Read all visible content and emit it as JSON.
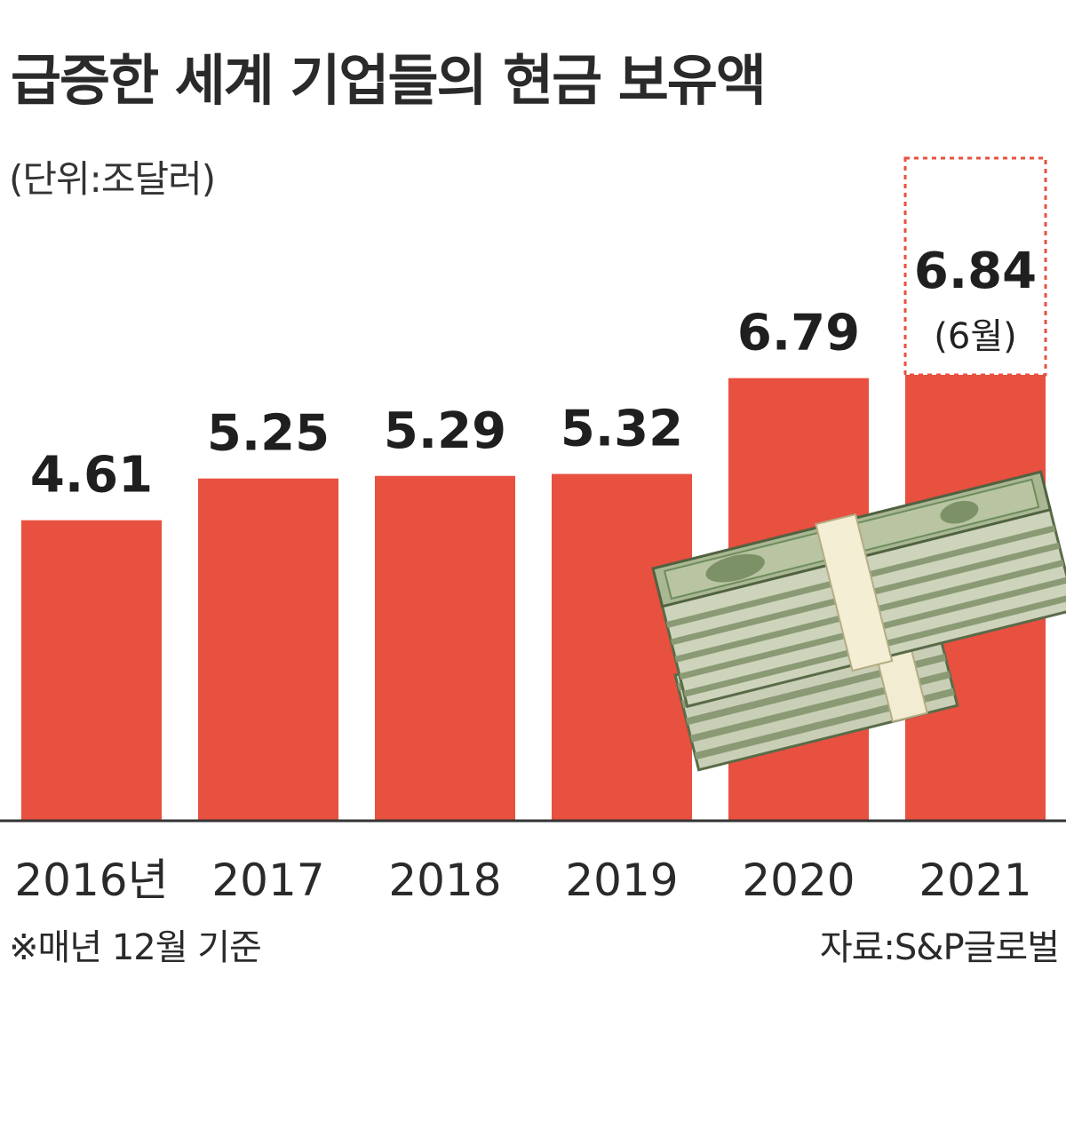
{
  "header": {
    "title": "급증한 세계 기업들의 현금 보유액",
    "unit": "(단위:조달러)"
  },
  "footer": {
    "note": "※매년 12월 기준",
    "source": "자료:S&P글로벌"
  },
  "colors": {
    "bar": "#e8503f",
    "highlight_border": "#e8503f",
    "axis": "#333333",
    "money_green": "#6e8c5a"
  },
  "illustration": {
    "icon": "cash-stack-icon"
  },
  "chart_data": {
    "type": "bar",
    "categories": [
      "2016년",
      "2017",
      "2018",
      "2019",
      "2020",
      "2021"
    ],
    "values": [
      4.61,
      5.25,
      5.29,
      5.32,
      6.79,
      6.84
    ],
    "value_labels": [
      "4.61",
      "5.25",
      "5.29",
      "5.32",
      "6.79",
      "6.84"
    ],
    "annotations": [
      {
        "category": "2021",
        "text": "(6월)"
      }
    ],
    "highlight": "2021",
    "ylim": [
      0,
      6.84
    ],
    "grid": false,
    "legend": "none"
  }
}
